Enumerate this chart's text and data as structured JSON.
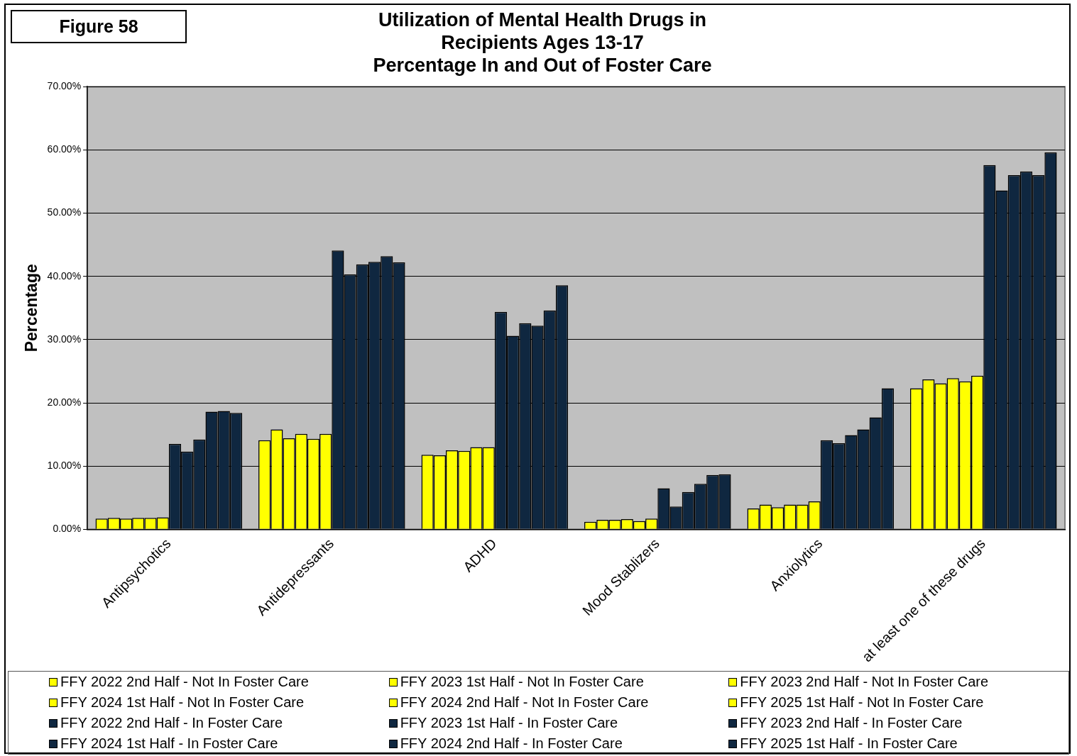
{
  "chart_data": {
    "type": "bar",
    "title": "Utilization of Mental Health Drugs in\nRecipients Ages 13-17\nPercentage In and Out of Foster Care",
    "ylabel": "Percentage",
    "annotations": [
      "Figure 58"
    ],
    "categories": [
      "Antipsychotics",
      "Antidepressants",
      "ADHD",
      "Mood Stablizers",
      "Anxiolytics",
      "at least one of these drugs"
    ],
    "series": [
      {
        "name": "FFY 2022 2nd Half - Not In Foster Care",
        "color": "#ffff00",
        "values": [
          1.7,
          14.1,
          11.8,
          1.2,
          3.3,
          22.3
        ]
      },
      {
        "name": "FFY 2023 1st Half - Not In Foster Care",
        "color": "#ffff00",
        "values": [
          1.8,
          15.8,
          11.7,
          1.5,
          3.9,
          23.7
        ]
      },
      {
        "name": "FFY 2023 2nd Half - Not In Foster Care",
        "color": "#ffff00",
        "values": [
          1.7,
          14.4,
          12.5,
          1.5,
          3.5,
          23.1
        ]
      },
      {
        "name": "FFY 2024 1st Half - Not In Foster Care",
        "color": "#ffff00",
        "values": [
          1.8,
          15.1,
          12.4,
          1.6,
          3.9,
          23.9
        ]
      },
      {
        "name": "FFY 2024 2nd Half - Not In Foster Care",
        "color": "#ffff00",
        "values": [
          1.8,
          14.3,
          13.0,
          1.3,
          3.9,
          23.4
        ]
      },
      {
        "name": "FFY 2025 1st Half - Not In Foster Care",
        "color": "#ffff00",
        "values": [
          1.9,
          15.1,
          13.0,
          1.7,
          4.4,
          24.3
        ]
      },
      {
        "name": "FFY 2022 2nd Half - In Foster Care",
        "color": "#0f2740",
        "values": [
          13.5,
          44.1,
          34.4,
          6.5,
          14.1,
          57.6
        ]
      },
      {
        "name": "FFY 2023 1st Half - In Foster Care",
        "color": "#0f2740",
        "values": [
          12.3,
          40.3,
          30.6,
          3.6,
          13.6,
          53.6
        ]
      },
      {
        "name": "FFY 2023 2nd Half - In Foster Care",
        "color": "#0f2740",
        "values": [
          14.2,
          41.9,
          32.6,
          5.9,
          14.9,
          56.0
        ]
      },
      {
        "name": "FFY 2024 1st Half - In Foster Care",
        "color": "#0f2740",
        "values": [
          18.6,
          42.3,
          32.2,
          7.2,
          15.8,
          56.6
        ]
      },
      {
        "name": "FFY 2024 2nd Half - In Foster Care",
        "color": "#0f2740",
        "values": [
          18.7,
          43.2,
          34.6,
          8.6,
          17.7,
          56.0
        ]
      },
      {
        "name": "FFY 2025 1st Half - In Foster Care",
        "color": "#0f2740",
        "values": [
          18.4,
          42.2,
          38.6,
          8.7,
          22.3,
          59.6
        ]
      }
    ],
    "ylim": [
      0,
      70
    ],
    "yticks": [
      {
        "value": 0,
        "label": "0.00%"
      },
      {
        "value": 10,
        "label": "10.00%"
      },
      {
        "value": 20,
        "label": "20.00%"
      },
      {
        "value": 30,
        "label": "30.00%"
      },
      {
        "value": 40,
        "label": "40.00%"
      },
      {
        "value": 50,
        "label": "50.00%"
      },
      {
        "value": 60,
        "label": "60.00%"
      },
      {
        "value": 70,
        "label": "70.00%"
      }
    ],
    "grid": "y",
    "legend": "bottom"
  }
}
